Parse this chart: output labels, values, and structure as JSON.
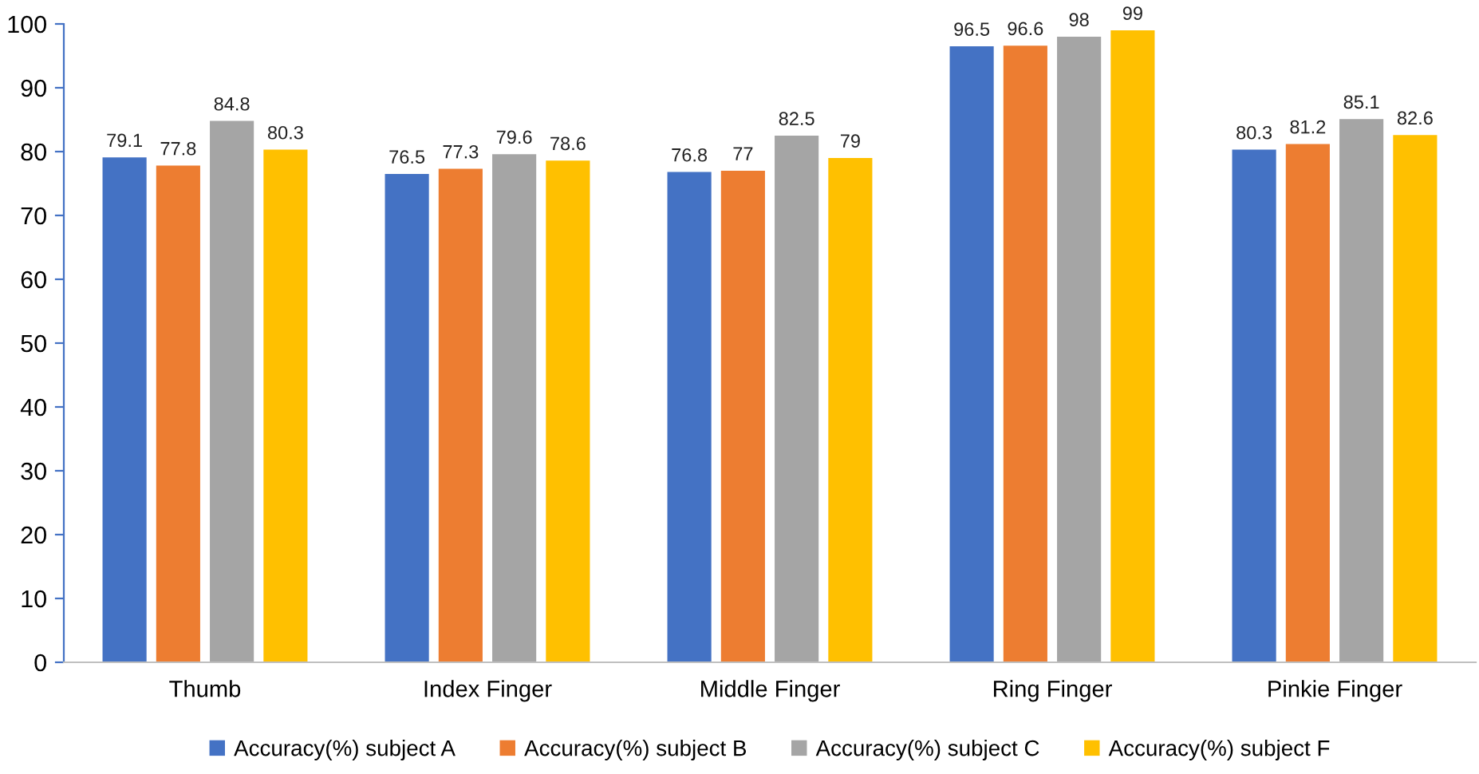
{
  "chart_data": {
    "type": "bar",
    "categories": [
      "Thumb",
      "Index Finger",
      "Middle Finger",
      "Ring Finger",
      "Pinkie Finger"
    ],
    "series": [
      {
        "name": "Accuracy(%) subject A",
        "color": "#4472c4",
        "values": [
          79.1,
          76.5,
          76.8,
          96.5,
          80.3
        ]
      },
      {
        "name": "Accuracy(%) subject B",
        "color": "#ed7d31",
        "values": [
          77.8,
          77.3,
          77,
          96.6,
          81.2
        ]
      },
      {
        "name": "Accuracy(%) subject C",
        "color": "#a5a5a5",
        "values": [
          84.8,
          79.6,
          82.5,
          98,
          85.1
        ]
      },
      {
        "name": "Accuracy(%) subject F",
        "color": "#ffc000",
        "values": [
          80.3,
          78.6,
          79,
          99,
          82.6
        ]
      }
    ],
    "ylim": [
      0,
      100
    ],
    "yticks": [
      0,
      10,
      20,
      30,
      40,
      50,
      60,
      70,
      80,
      90,
      100
    ],
    "data_labels": true,
    "legend": "bottom",
    "grid": false
  }
}
